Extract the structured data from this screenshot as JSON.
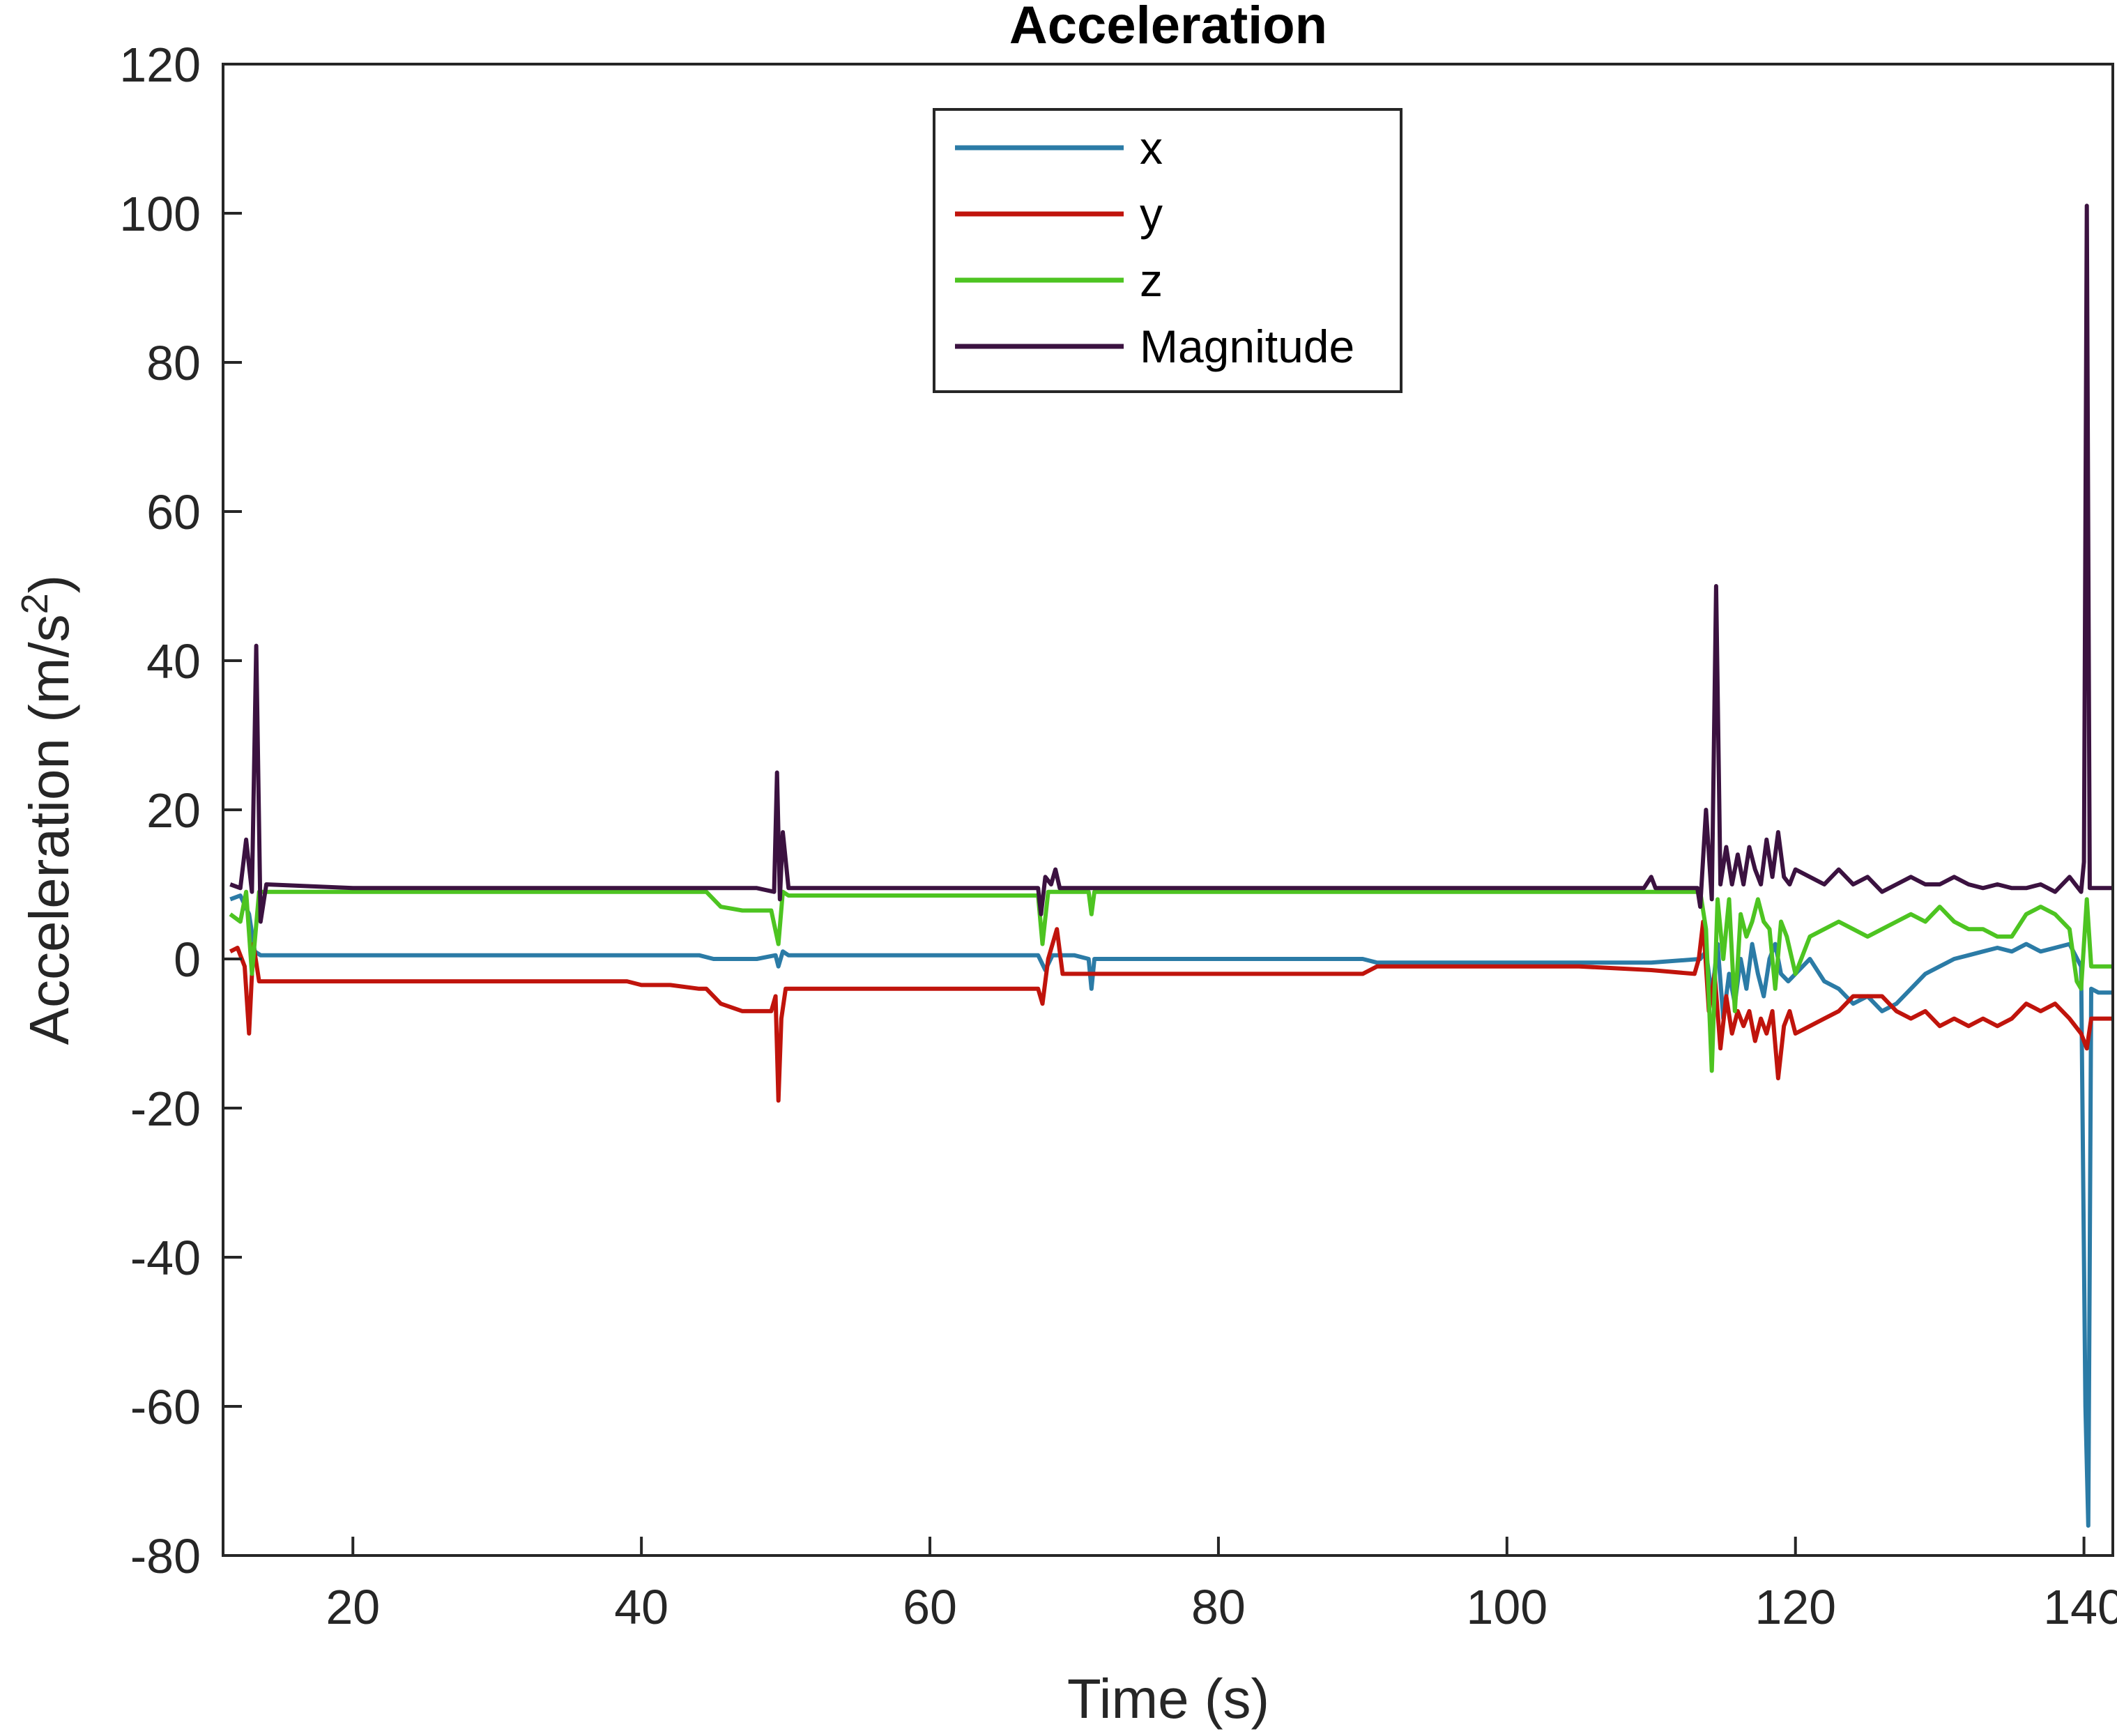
{
  "chart_data": {
    "type": "line",
    "title": "Acceleration",
    "xlabel": "Time (s)",
    "ylabel": "Acceleration (m/s²)",
    "ylabel_base": "Acceleration (m/s",
    "ylabel_sup": "2",
    "ylabel_close": ")",
    "xlim": [
      11,
      142
    ],
    "ylim": [
      -80,
      120
    ],
    "xticks": [
      20,
      40,
      60,
      80,
      100,
      120,
      140
    ],
    "xtick_labels": [
      "20",
      "40",
      "60",
      "80",
      "100",
      "120",
      "140"
    ],
    "yticks": [
      -80,
      -60,
      -40,
      -20,
      0,
      20,
      40,
      60,
      80,
      100,
      120
    ],
    "ytick_labels": [
      "-80",
      "-60",
      "-40",
      "-20",
      "0",
      "20",
      "40",
      "60",
      "80",
      "100",
      "120"
    ],
    "grid": false,
    "legend_position": "top-center",
    "series": [
      {
        "name": "x",
        "color": "#2B7BA6",
        "points": [
          [
            11.5,
            8
          ],
          [
            12.2,
            8.5
          ],
          [
            12.8,
            6
          ],
          [
            13.2,
            1
          ],
          [
            13.6,
            0.5
          ],
          [
            14,
            0.5
          ],
          [
            20,
            0.5
          ],
          [
            30,
            0.5
          ],
          [
            40,
            0.5
          ],
          [
            44,
            0.5
          ],
          [
            45,
            0
          ],
          [
            48,
            0
          ],
          [
            49.3,
            0.5
          ],
          [
            49.5,
            -1
          ],
          [
            49.8,
            1
          ],
          [
            50.2,
            0.5
          ],
          [
            55,
            0.5
          ],
          [
            60,
            0.5
          ],
          [
            67.5,
            0.5
          ],
          [
            68,
            -1.5
          ],
          [
            68.5,
            0.5
          ],
          [
            70,
            0.5
          ],
          [
            71,
            0
          ],
          [
            71.2,
            -4
          ],
          [
            71.4,
            0
          ],
          [
            75,
            0
          ],
          [
            80,
            0
          ],
          [
            85,
            0
          ],
          [
            90,
            0
          ],
          [
            91,
            -0.5
          ],
          [
            95,
            -0.5
          ],
          [
            100,
            -0.5
          ],
          [
            105,
            -0.5
          ],
          [
            110,
            -0.5
          ],
          [
            113.4,
            0
          ],
          [
            113.8,
            1
          ],
          [
            114.2,
            -5
          ],
          [
            114.6,
            2
          ],
          [
            115,
            -8
          ],
          [
            115.4,
            -2
          ],
          [
            115.8,
            -6
          ],
          [
            116.2,
            0
          ],
          [
            116.6,
            -4
          ],
          [
            117,
            2
          ],
          [
            117.4,
            -2
          ],
          [
            117.8,
            -5
          ],
          [
            118.2,
            0
          ],
          [
            118.6,
            2
          ],
          [
            119,
            -2
          ],
          [
            119.5,
            -3
          ],
          [
            120,
            -2
          ],
          [
            121,
            0
          ],
          [
            122,
            -3
          ],
          [
            123,
            -4
          ],
          [
            124,
            -6
          ],
          [
            125,
            -5
          ],
          [
            126,
            -7
          ],
          [
            127,
            -6
          ],
          [
            128,
            -4
          ],
          [
            129,
            -2
          ],
          [
            130,
            -1
          ],
          [
            131,
            0
          ],
          [
            132,
            0.5
          ],
          [
            133,
            1
          ],
          [
            134,
            1.5
          ],
          [
            135,
            1
          ],
          [
            136,
            2
          ],
          [
            137,
            1
          ],
          [
            138,
            1.5
          ],
          [
            139,
            2
          ],
          [
            139.8,
            -1
          ],
          [
            140.1,
            -60
          ],
          [
            140.3,
            -76
          ],
          [
            140.5,
            -4
          ],
          [
            141,
            -4.5
          ],
          [
            142,
            -4.5
          ]
        ]
      },
      {
        "name": "y",
        "color": "#C0140C",
        "points": [
          [
            11.5,
            1
          ],
          [
            12,
            1.5
          ],
          [
            12.5,
            -1
          ],
          [
            12.8,
            -10
          ],
          [
            13.1,
            2
          ],
          [
            13.5,
            -3
          ],
          [
            14,
            -3
          ],
          [
            20,
            -3
          ],
          [
            30,
            -3
          ],
          [
            39,
            -3
          ],
          [
            40,
            -3.5
          ],
          [
            42,
            -3.5
          ],
          [
            44,
            -4
          ],
          [
            44.5,
            -4
          ],
          [
            45.5,
            -6
          ],
          [
            47,
            -7
          ],
          [
            49,
            -7
          ],
          [
            49.3,
            -5
          ],
          [
            49.5,
            -19
          ],
          [
            49.7,
            -8
          ],
          [
            50,
            -4
          ],
          [
            55,
            -4
          ],
          [
            60,
            -4
          ],
          [
            67.5,
            -4
          ],
          [
            67.8,
            -6
          ],
          [
            68.2,
            0
          ],
          [
            68.8,
            4
          ],
          [
            69.2,
            -2
          ],
          [
            70,
            -2
          ],
          [
            71,
            -2
          ],
          [
            72,
            -2
          ],
          [
            75,
            -2
          ],
          [
            80,
            -2
          ],
          [
            85,
            -2
          ],
          [
            90,
            -2
          ],
          [
            91,
            -1
          ],
          [
            95,
            -1
          ],
          [
            100,
            -1
          ],
          [
            105,
            -1
          ],
          [
            110,
            -1.5
          ],
          [
            113,
            -2
          ],
          [
            113.3,
            0
          ],
          [
            113.6,
            5
          ],
          [
            114,
            -7
          ],
          [
            114.4,
            -2
          ],
          [
            114.8,
            -12
          ],
          [
            115.2,
            -5
          ],
          [
            115.6,
            -10
          ],
          [
            116,
            -7
          ],
          [
            116.4,
            -9
          ],
          [
            116.8,
            -7
          ],
          [
            117.2,
            -11
          ],
          [
            117.6,
            -8
          ],
          [
            118,
            -10
          ],
          [
            118.4,
            -7
          ],
          [
            118.8,
            -16
          ],
          [
            119.2,
            -9
          ],
          [
            119.6,
            -7
          ],
          [
            120,
            -10
          ],
          [
            121,
            -9
          ],
          [
            122,
            -8
          ],
          [
            123,
            -7
          ],
          [
            124,
            -5
          ],
          [
            125,
            -5
          ],
          [
            126,
            -5
          ],
          [
            127,
            -7
          ],
          [
            128,
            -8
          ],
          [
            129,
            -7
          ],
          [
            130,
            -9
          ],
          [
            131,
            -8
          ],
          [
            132,
            -9
          ],
          [
            133,
            -8
          ],
          [
            134,
            -9
          ],
          [
            135,
            -8
          ],
          [
            136,
            -6
          ],
          [
            137,
            -7
          ],
          [
            138,
            -6
          ],
          [
            139,
            -8
          ],
          [
            139.8,
            -10
          ],
          [
            140.2,
            -12
          ],
          [
            140.5,
            -8
          ],
          [
            141,
            -8
          ],
          [
            142,
            -8
          ]
        ]
      },
      {
        "name": "z",
        "color": "#4DC421",
        "points": [
          [
            11.5,
            6
          ],
          [
            12.2,
            5
          ],
          [
            12.6,
            9
          ],
          [
            13,
            -2
          ],
          [
            13.5,
            9
          ],
          [
            14,
            9
          ],
          [
            20,
            9
          ],
          [
            30,
            9
          ],
          [
            40,
            9
          ],
          [
            44.5,
            9
          ],
          [
            45.5,
            7
          ],
          [
            47,
            6.5
          ],
          [
            49,
            6.5
          ],
          [
            49.5,
            2
          ],
          [
            49.8,
            9
          ],
          [
            50.2,
            8.5
          ],
          [
            55,
            8.5
          ],
          [
            60,
            8.5
          ],
          [
            67.5,
            8.5
          ],
          [
            67.8,
            2
          ],
          [
            68.2,
            9
          ],
          [
            70,
            9
          ],
          [
            71,
            9
          ],
          [
            71.2,
            6
          ],
          [
            71.4,
            9
          ],
          [
            75,
            9
          ],
          [
            80,
            9
          ],
          [
            85,
            9
          ],
          [
            90,
            9
          ],
          [
            95,
            9
          ],
          [
            100,
            9
          ],
          [
            105,
            9
          ],
          [
            110,
            9
          ],
          [
            113.4,
            9
          ],
          [
            113.8,
            4
          ],
          [
            114.2,
            -15
          ],
          [
            114.6,
            8
          ],
          [
            115,
            0
          ],
          [
            115.4,
            8
          ],
          [
            115.8,
            -7
          ],
          [
            116.2,
            6
          ],
          [
            116.6,
            3
          ],
          [
            117,
            5
          ],
          [
            117.4,
            8
          ],
          [
            117.8,
            5
          ],
          [
            118.2,
            4
          ],
          [
            118.6,
            -4
          ],
          [
            119,
            5
          ],
          [
            119.4,
            3
          ],
          [
            120,
            -2
          ],
          [
            121,
            3
          ],
          [
            122,
            4
          ],
          [
            123,
            5
          ],
          [
            124,
            4
          ],
          [
            125,
            3
          ],
          [
            126,
            4
          ],
          [
            127,
            5
          ],
          [
            128,
            6
          ],
          [
            129,
            5
          ],
          [
            130,
            7
          ],
          [
            131,
            5
          ],
          [
            132,
            4
          ],
          [
            133,
            4
          ],
          [
            134,
            3
          ],
          [
            135,
            3
          ],
          [
            136,
            6
          ],
          [
            137,
            7
          ],
          [
            138,
            6
          ],
          [
            139,
            4
          ],
          [
            139.5,
            -3
          ],
          [
            139.8,
            -4
          ],
          [
            140.2,
            8
          ],
          [
            140.5,
            -1
          ],
          [
            141,
            -1
          ],
          [
            142,
            -1
          ]
        ]
      },
      {
        "name": "Magnitude",
        "color": "#3B1240",
        "points": [
          [
            11.5,
            10
          ],
          [
            12.2,
            9.5
          ],
          [
            12.6,
            16
          ],
          [
            13,
            9
          ],
          [
            13.3,
            42
          ],
          [
            13.6,
            5
          ],
          [
            14,
            10
          ],
          [
            20,
            9.5
          ],
          [
            30,
            9.5
          ],
          [
            40,
            9.5
          ],
          [
            45,
            9.5
          ],
          [
            48,
            9.5
          ],
          [
            49.2,
            9
          ],
          [
            49.4,
            25
          ],
          [
            49.6,
            8
          ],
          [
            49.8,
            17
          ],
          [
            50.2,
            9.5
          ],
          [
            55,
            9.5
          ],
          [
            60,
            9.5
          ],
          [
            67.5,
            9.5
          ],
          [
            67.7,
            6
          ],
          [
            68,
            11
          ],
          [
            68.4,
            10
          ],
          [
            68.7,
            12
          ],
          [
            69,
            9.5
          ],
          [
            70,
            9.5
          ],
          [
            71,
            9.5
          ],
          [
            75,
            9.5
          ],
          [
            80,
            9.5
          ],
          [
            85,
            9.5
          ],
          [
            90,
            9.5
          ],
          [
            95,
            9.5
          ],
          [
            100,
            9.5
          ],
          [
            105,
            9.5
          ],
          [
            109.5,
            9.5
          ],
          [
            110,
            11
          ],
          [
            110.3,
            9.5
          ],
          [
            113.2,
            9.5
          ],
          [
            113.4,
            7
          ],
          [
            113.8,
            20
          ],
          [
            114.2,
            8
          ],
          [
            114.5,
            50
          ],
          [
            114.8,
            10
          ],
          [
            115.2,
            15
          ],
          [
            115.6,
            10
          ],
          [
            116,
            14
          ],
          [
            116.4,
            10
          ],
          [
            116.8,
            15
          ],
          [
            117.2,
            12
          ],
          [
            117.6,
            10
          ],
          [
            118,
            16
          ],
          [
            118.4,
            11
          ],
          [
            118.8,
            17
          ],
          [
            119.2,
            11
          ],
          [
            119.6,
            10
          ],
          [
            120,
            12
          ],
          [
            121,
            11
          ],
          [
            122,
            10
          ],
          [
            123,
            12
          ],
          [
            124,
            10
          ],
          [
            125,
            11
          ],
          [
            126,
            9
          ],
          [
            127,
            10
          ],
          [
            128,
            11
          ],
          [
            129,
            10
          ],
          [
            130,
            10
          ],
          [
            131,
            11
          ],
          [
            132,
            10
          ],
          [
            133,
            9.5
          ],
          [
            134,
            10
          ],
          [
            135,
            9.5
          ],
          [
            136,
            9.5
          ],
          [
            137,
            10
          ],
          [
            138,
            9
          ],
          [
            139,
            11
          ],
          [
            139.8,
            9
          ],
          [
            140,
            13
          ],
          [
            140.2,
            101
          ],
          [
            140.4,
            9.5
          ],
          [
            141,
            9.5
          ],
          [
            142,
            9.5
          ]
        ]
      }
    ]
  }
}
